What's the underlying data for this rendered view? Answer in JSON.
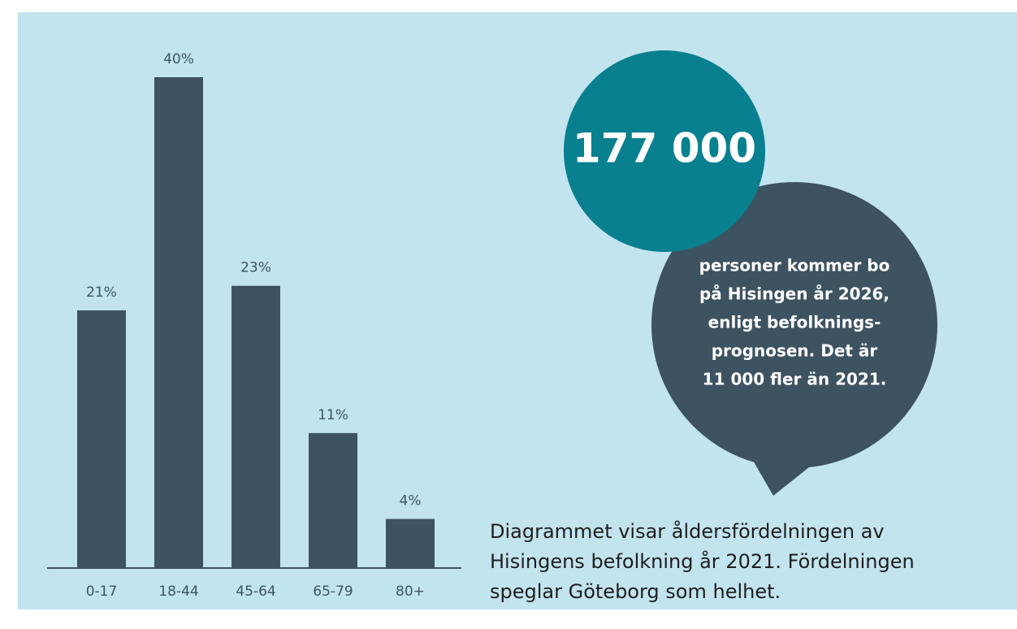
{
  "chart_data": {
    "type": "bar",
    "categories": [
      "0-17",
      "18-44",
      "45-64",
      "65-79",
      "80+"
    ],
    "values": [
      21,
      40,
      23,
      11,
      4
    ],
    "value_labels": [
      "21%",
      "40%",
      "23%",
      "11%",
      "4%"
    ],
    "color": "#3d5361",
    "callout": {
      "number": "177 000",
      "lines": [
        "personer kommer bo",
        "på Hisingen år 2026,",
        "enligt befolknings-",
        "prognosen. Det är",
        "11 000 fler än 2021."
      ]
    },
    "caption": [
      "Diagrammet visar åldersfördelningen av",
      "Hisingens befolkning år 2021. Fördelningen",
      "speglar Göteborg som helhet."
    ]
  }
}
